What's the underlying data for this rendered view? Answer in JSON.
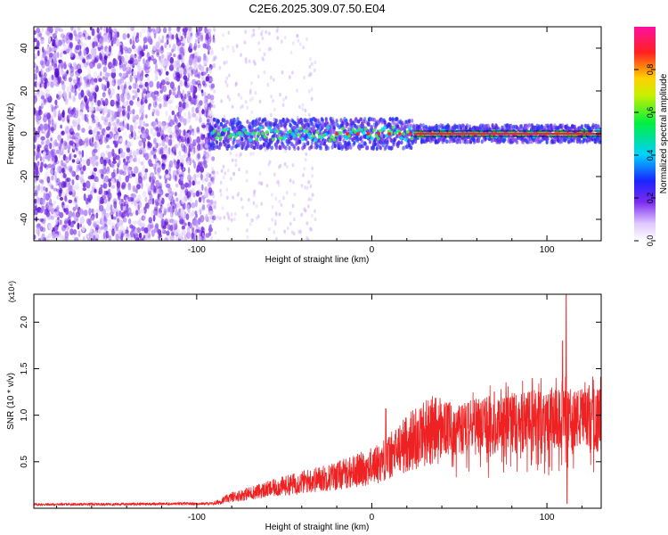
{
  "title": "C2E6.2025.309.07.50.E04",
  "colors": {
    "snr_line": "#ee2222",
    "baseline": "#000000",
    "scatter_purple": "#6a1fd8",
    "axis": "#000000"
  },
  "chart_data": [
    {
      "type": "heatmap",
      "name": "spectrogram",
      "xlabel": "Height of straight line (km)",
      "ylabel": "Frequency (Hz)",
      "xlim": [
        -193,
        131
      ],
      "ylim": [
        -50,
        50
      ],
      "xticks": [
        -100,
        0,
        100
      ],
      "xtick_labels": [
        "-100",
        "0",
        "100"
      ],
      "yticks": [
        -40,
        -20,
        0,
        20,
        40
      ],
      "ytick_labels": [
        "-40",
        "-20",
        "0",
        "20",
        "40"
      ],
      "colorbar": {
        "label": "Normalized spectral amplitude",
        "range": [
          0,
          1
        ],
        "ticks": [
          0.0,
          0.2,
          0.4,
          0.6,
          0.8
        ],
        "tick_labels": [
          "0.0",
          "0.2",
          "0.4",
          "0.6",
          "0.8"
        ],
        "colormap": "rainbow (white-purple-blue-cyan-green-yellow-red-magenta)"
      },
      "features": {
        "noise_region_x": [
          -193,
          -90
        ],
        "signal_band_x": [
          -93,
          131
        ],
        "signal_center_hz": 0,
        "strong_signal_x": [
          24,
          131
        ]
      }
    },
    {
      "type": "line",
      "name": "snr",
      "xlabel": "Height of straight line (km)",
      "ylabel": "SNR (10 * v/v)",
      "y_multiplier": "(x10⁴)",
      "xlim": [
        -193,
        131
      ],
      "ylim": [
        0,
        23000
      ],
      "xticks": [
        -100,
        0,
        100
      ],
      "xtick_labels": [
        "-100",
        "0",
        "100"
      ],
      "yticks": [
        5000,
        10000,
        15000,
        20000
      ],
      "ytick_labels": [
        "0.5",
        "1.0",
        "1.5",
        "2.0"
      ],
      "series": [
        {
          "name": "SNR",
          "envelope_x": [
            -193,
            -90,
            -80,
            -60,
            -40,
            -20,
            0,
            10,
            20,
            30,
            40,
            50,
            60,
            70,
            80,
            90,
            100,
            110,
            120,
            131
          ],
          "envelope_y": [
            400,
            500,
            1200,
            2000,
            2800,
            3500,
            4500,
            5500,
            7000,
            8200,
            8500,
            8500,
            8800,
            9000,
            9200,
            9300,
            9500,
            9500,
            9600,
            9600
          ],
          "spikes": [
            {
              "x": 8,
              "y": 10700
            },
            {
              "x": 70,
              "y": 12500
            },
            {
              "x": 109,
              "y": 18000
            },
            {
              "x": 111,
              "y": 23000
            },
            {
              "x": 111.5,
              "y": 500
            }
          ]
        }
      ]
    }
  ]
}
